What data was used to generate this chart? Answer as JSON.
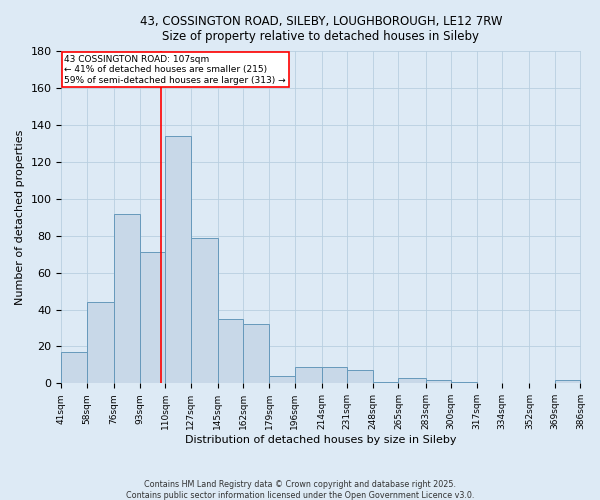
{
  "title_line1": "43, COSSINGTON ROAD, SILEBY, LOUGHBOROUGH, LE12 7RW",
  "title_line2": "Size of property relative to detached houses in Sileby",
  "xlabel": "Distribution of detached houses by size in Sileby",
  "ylabel": "Number of detached properties",
  "bins": [
    41,
    58,
    76,
    93,
    110,
    127,
    145,
    162,
    179,
    196,
    214,
    231,
    248,
    265,
    283,
    300,
    317,
    334,
    352,
    369,
    386
  ],
  "bin_labels": [
    "41sqm",
    "58sqm",
    "76sqm",
    "93sqm",
    "110sqm",
    "127sqm",
    "145sqm",
    "162sqm",
    "179sqm",
    "196sqm",
    "214sqm",
    "231sqm",
    "248sqm",
    "265sqm",
    "283sqm",
    "300sqm",
    "317sqm",
    "334sqm",
    "352sqm",
    "369sqm",
    "386sqm"
  ],
  "values": [
    17,
    44,
    92,
    71,
    134,
    79,
    35,
    32,
    4,
    9,
    9,
    7,
    1,
    3,
    2,
    1,
    0,
    0,
    0,
    2
  ],
  "bar_color": "#c8d8e8",
  "bar_edge_color": "#6699bb",
  "bar_edge_width": 0.7,
  "grid_color": "#b8cfe0",
  "bg_color": "#ddeaf5",
  "ylim": [
    0,
    180
  ],
  "yticks": [
    0,
    20,
    40,
    60,
    80,
    100,
    120,
    140,
    160,
    180
  ],
  "property_line_x": 107,
  "property_line_color": "red",
  "annotation_text": "43 COSSINGTON ROAD: 107sqm\n← 41% of detached houses are smaller (215)\n59% of semi-detached houses are larger (313) →",
  "annotation_box_color": "white",
  "annotation_box_edge": "red",
  "footer_line1": "Contains HM Land Registry data © Crown copyright and database right 2025.",
  "footer_line2": "Contains public sector information licensed under the Open Government Licence v3.0."
}
